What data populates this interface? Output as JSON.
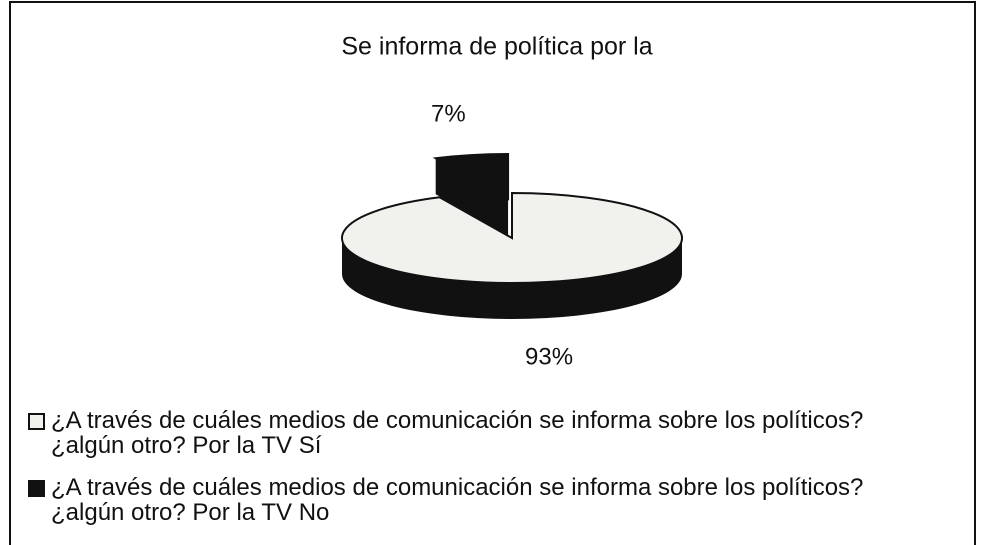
{
  "chart_data": {
    "type": "pie3d",
    "title": "Se informa de política por la",
    "categories": [
      "¿A través de cuáles medios de comunicación se informa sobre los políticos? ¿algún otro? Por la TV Sí",
      "¿A través de cuáles medios de comunicación se informa sobre los políticos? ¿algún otro? Por la TV No"
    ],
    "values": [
      93,
      7
    ],
    "value_labels": [
      "93%",
      "7%"
    ],
    "colors": [
      "#f1f1ee",
      "#111111"
    ],
    "side_color": "#111111",
    "legend": "bottom"
  }
}
